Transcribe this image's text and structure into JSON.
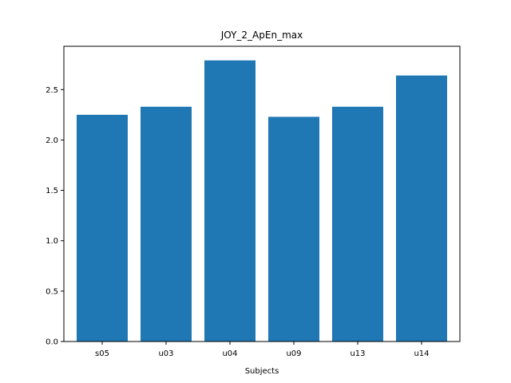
{
  "chart_data": {
    "type": "bar",
    "title": "JOY_2_ApEn_max",
    "xlabel": "Subjects",
    "ylabel": "",
    "categories": [
      "s05",
      "u03",
      "u04",
      "u09",
      "u13",
      "u14"
    ],
    "values": [
      2.25,
      2.33,
      2.79,
      2.23,
      2.33,
      2.64
    ],
    "ylim": [
      0,
      2.93
    ],
    "yticks": [
      0.0,
      0.5,
      1.0,
      1.5,
      2.0,
      2.5
    ],
    "ytick_labels": [
      "0.0",
      "0.5",
      "1.0",
      "1.5",
      "2.0",
      "2.5"
    ],
    "bar_color": "#1f77b4",
    "grid": false,
    "legend": "none"
  }
}
